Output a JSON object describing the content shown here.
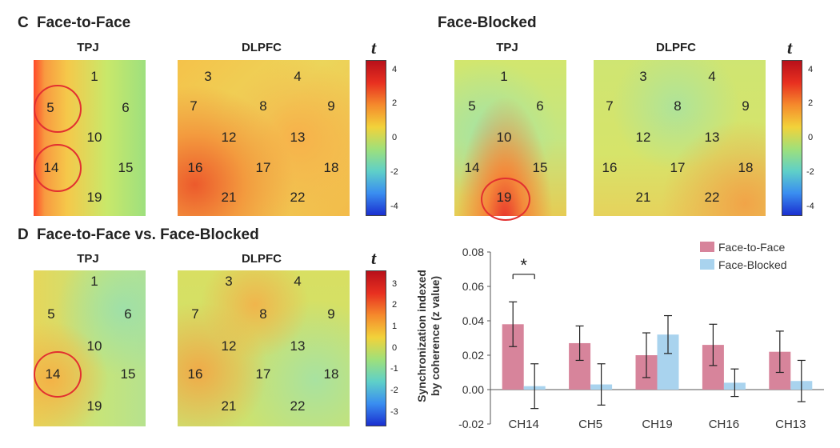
{
  "panels": {
    "c_label": "C",
    "c_title_left": "Face-to-Face",
    "c_title_right": "Face-Blocked",
    "d_label": "D",
    "d_title": "Face-to-Face vs. Face-Blocked"
  },
  "regions": {
    "tpj": "TPJ",
    "dlpfc": "DLPFC"
  },
  "channels": {
    "tpj": [
      "1",
      "5",
      "6",
      "10",
      "14",
      "15",
      "19"
    ],
    "dlpfc": [
      "3",
      "4",
      "7",
      "8",
      "9",
      "12",
      "13",
      "16",
      "17",
      "18",
      "21",
      "22"
    ]
  },
  "colorbar": {
    "symbol": "t",
    "c_ticks": [
      "4",
      "2",
      "0",
      "-2",
      "-4"
    ],
    "d_ticks": [
      "3",
      "2",
      "1",
      "0",
      "-1",
      "-2",
      "-3"
    ],
    "colors": [
      "#b8101a",
      "#e83020",
      "#f58a2c",
      "#f2d23a",
      "#9fe07a",
      "#5fd0c8",
      "#3a8ef0",
      "#1a2fd0"
    ]
  },
  "circled": {
    "c_face_to_face_tpj": [
      "5",
      "14"
    ],
    "c_face_blocked_tpj": [
      "19"
    ],
    "d_tpj": [
      "14"
    ]
  },
  "chart_data": {
    "type": "bar",
    "ylabel_line1": "Synchronization indexed",
    "ylabel_line2": "by coherence (z value)",
    "ylim": [
      -0.02,
      0.08
    ],
    "yticks": [
      "0.08",
      "0.06",
      "0.04",
      "0.02",
      "0.00",
      "-0.02"
    ],
    "categories": [
      "CH14",
      "CH5",
      "CH19",
      "CH16",
      "CH13"
    ],
    "series": [
      {
        "name": "Face-to-Face",
        "color": "#d7849b",
        "values": [
          0.038,
          0.027,
          0.02,
          0.026,
          0.022
        ],
        "errors": [
          0.013,
          0.01,
          0.013,
          0.012,
          0.012
        ]
      },
      {
        "name": "Face-Blocked",
        "color": "#a9d3ee",
        "values": [
          0.002,
          0.003,
          0.032,
          0.004,
          0.005
        ],
        "errors": [
          0.013,
          0.012,
          0.011,
          0.008,
          0.012
        ]
      }
    ],
    "annotation": "*",
    "legend_position": "top-right"
  }
}
